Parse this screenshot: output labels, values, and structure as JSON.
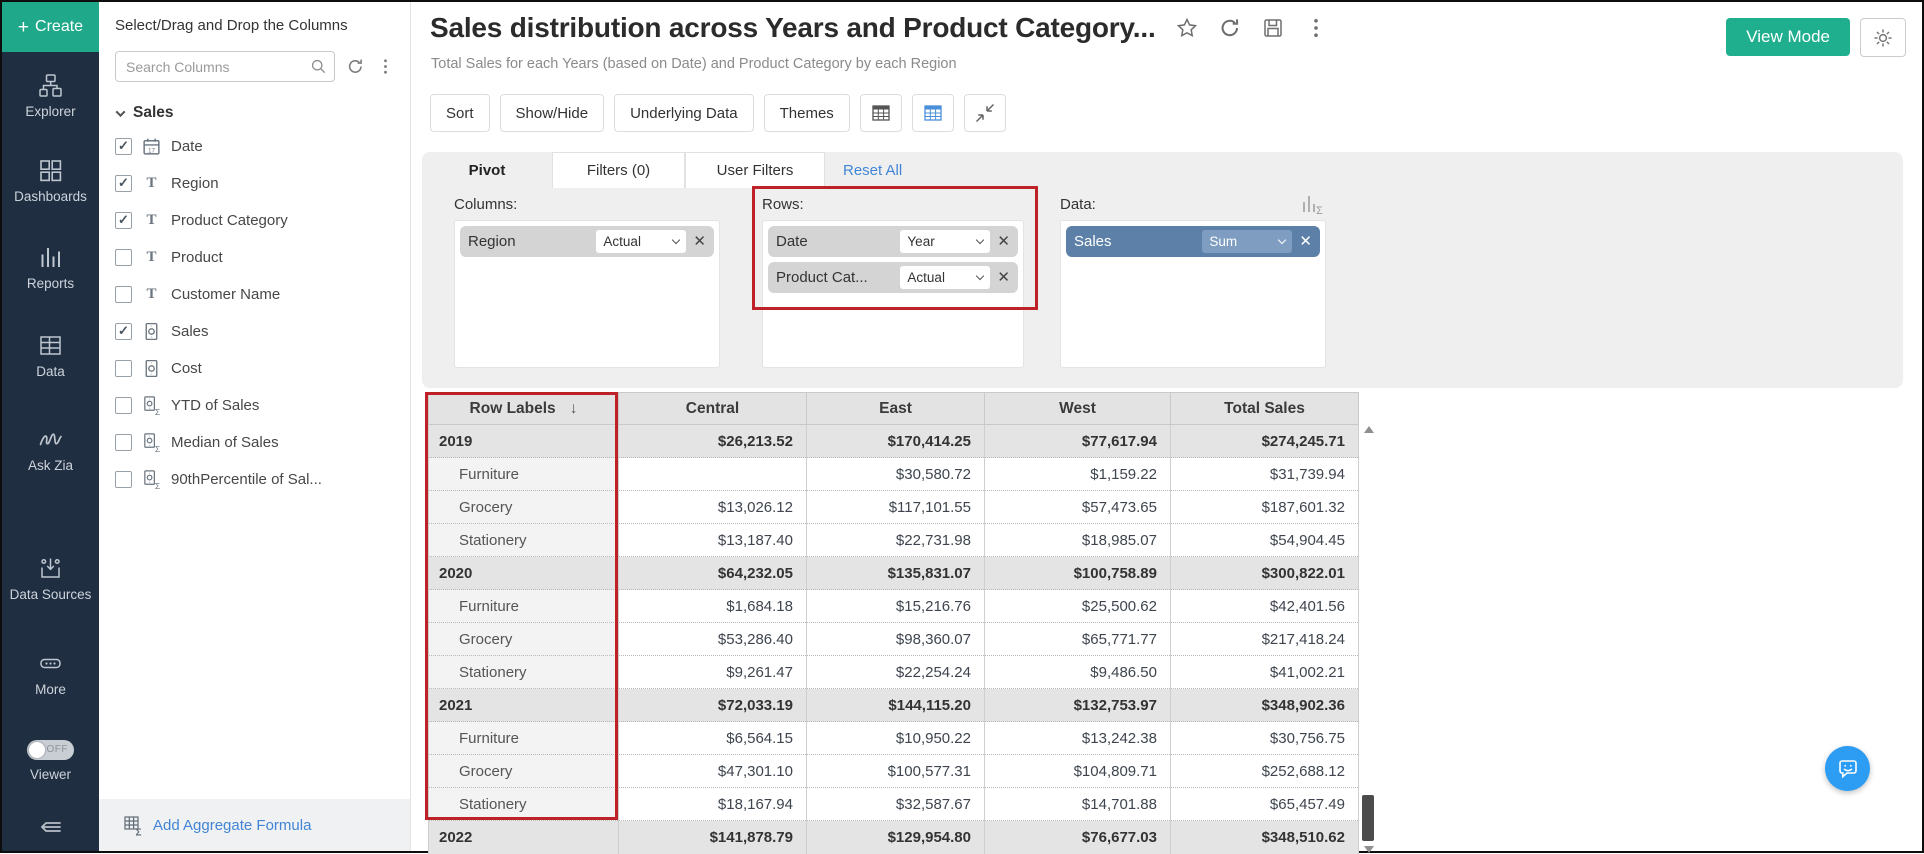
{
  "colors": {
    "accent_teal": "#1fa98a",
    "link_blue": "#4285d6",
    "highlight_red": "#bf2129",
    "chip_blue": "#5c80a7",
    "chat_blue": "#2d9cf3",
    "sidebar_navy": "#202e42"
  },
  "sidebar": {
    "create_label": "Create",
    "items": [
      {
        "label": "Explorer",
        "icon": "explorer-icon"
      },
      {
        "label": "Dashboards",
        "icon": "dashboards-icon"
      },
      {
        "label": "Reports",
        "icon": "reports-icon"
      },
      {
        "label": "Data",
        "icon": "data-table-icon"
      },
      {
        "label": "Ask Zia",
        "icon": "ask-zia-icon"
      },
      {
        "label": "Data Sources",
        "icon": "data-sources-icon"
      },
      {
        "label": "More",
        "icon": "more-icon"
      }
    ],
    "viewer": {
      "label": "Viewer",
      "toggle_state": "OFF"
    }
  },
  "column_panel": {
    "title": "Select/Drag and Drop the Columns",
    "search_placeholder": "Search Columns",
    "group_label": "Sales",
    "fields": [
      {
        "name": "Date",
        "checked": true,
        "icon": "calendar-icon"
      },
      {
        "name": "Region",
        "checked": true,
        "icon": "text-icon"
      },
      {
        "name": "Product Category",
        "checked": true,
        "icon": "text-icon"
      },
      {
        "name": "Product",
        "checked": false,
        "icon": "text-icon"
      },
      {
        "name": "Customer Name",
        "checked": false,
        "icon": "text-icon"
      },
      {
        "name": "Sales",
        "checked": true,
        "icon": "measure-icon"
      },
      {
        "name": "Cost",
        "checked": false,
        "icon": "measure-icon"
      },
      {
        "name": "YTD of Sales",
        "checked": false,
        "icon": "formula-icon"
      },
      {
        "name": "Median of Sales",
        "checked": false,
        "icon": "formula-icon"
      },
      {
        "name": "90thPercentile of Sal...",
        "checked": false,
        "icon": "formula-icon"
      }
    ],
    "add_aggregate_label": "Add Aggregate Formula"
  },
  "report_header": {
    "title": "Sales distribution across Years and Product Category...",
    "subtitle": "Total Sales for each Years (based on Date) and Product Category by each Region",
    "view_mode_label": "View Mode"
  },
  "toolbar": {
    "sort_label": "Sort",
    "show_hide_label": "Show/Hide",
    "underlying_data_label": "Underlying Data",
    "themes_label": "Themes"
  },
  "tabs": {
    "pivot": "Pivot",
    "filters": "Filters (0)",
    "user_filters": "User Filters",
    "reset_all": "Reset All"
  },
  "pivot_config": {
    "columns_label": "Columns:",
    "rows_label": "Rows:",
    "data_label": "Data:",
    "columns_chips": [
      {
        "name": "Region",
        "value": "Actual"
      }
    ],
    "rows_chips": [
      {
        "name": "Date",
        "value": "Year"
      },
      {
        "name": "Product Cat...",
        "value": "Actual"
      }
    ],
    "data_chips": [
      {
        "name": "Sales",
        "value": "Sum"
      }
    ]
  },
  "pivot_table": {
    "type": "table",
    "columns": [
      "Row Labels",
      "Central",
      "East",
      "West",
      "Total Sales"
    ],
    "sort_indicator": "↓",
    "rows": [
      {
        "label": "2019",
        "level": 0,
        "values": [
          "$26,213.52",
          "$170,414.25",
          "$77,617.94",
          "$274,245.71"
        ]
      },
      {
        "label": "Furniture",
        "level": 1,
        "values": [
          "",
          "$30,580.72",
          "$1,159.22",
          "$31,739.94"
        ]
      },
      {
        "label": "Grocery",
        "level": 1,
        "values": [
          "$13,026.12",
          "$117,101.55",
          "$57,473.65",
          "$187,601.32"
        ]
      },
      {
        "label": "Stationery",
        "level": 1,
        "values": [
          "$13,187.40",
          "$22,731.98",
          "$18,985.07",
          "$54,904.45"
        ]
      },
      {
        "label": "2020",
        "level": 0,
        "values": [
          "$64,232.05",
          "$135,831.07",
          "$100,758.89",
          "$300,822.01"
        ]
      },
      {
        "label": "Furniture",
        "level": 1,
        "values": [
          "$1,684.18",
          "$15,216.76",
          "$25,500.62",
          "$42,401.56"
        ]
      },
      {
        "label": "Grocery",
        "level": 1,
        "values": [
          "$53,286.40",
          "$98,360.07",
          "$65,771.77",
          "$217,418.24"
        ]
      },
      {
        "label": "Stationery",
        "level": 1,
        "values": [
          "$9,261.47",
          "$22,254.24",
          "$9,486.50",
          "$41,002.21"
        ]
      },
      {
        "label": "2021",
        "level": 0,
        "values": [
          "$72,033.19",
          "$144,115.20",
          "$132,753.97",
          "$348,902.36"
        ]
      },
      {
        "label": "Furniture",
        "level": 1,
        "values": [
          "$6,564.15",
          "$10,950.22",
          "$13,242.38",
          "$30,756.75"
        ]
      },
      {
        "label": "Grocery",
        "level": 1,
        "values": [
          "$47,301.10",
          "$100,577.31",
          "$104,809.71",
          "$252,688.12"
        ]
      },
      {
        "label": "Stationery",
        "level": 1,
        "values": [
          "$18,167.94",
          "$32,587.67",
          "$14,701.88",
          "$65,457.49"
        ]
      },
      {
        "label": "2022",
        "level": 0,
        "values": [
          "$141,878.79",
          "$129,954.80",
          "$76,677.03",
          "$348,510.62"
        ]
      }
    ]
  }
}
